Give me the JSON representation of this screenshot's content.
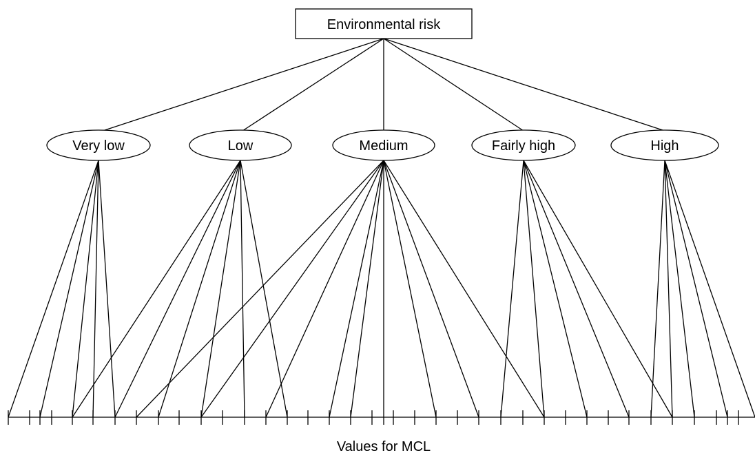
{
  "root": {
    "label": "Environmental risk"
  },
  "categories": [
    {
      "label": "Very low"
    },
    {
      "label": "Low"
    },
    {
      "label": "Medium"
    },
    {
      "label": "Fairly high"
    },
    {
      "label": "High"
    }
  ],
  "axis": {
    "label": "Values for MCL"
  }
}
